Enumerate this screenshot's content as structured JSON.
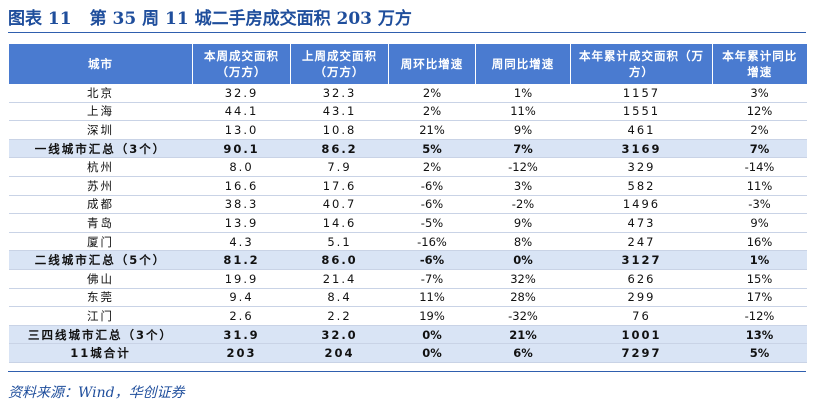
{
  "header": {
    "label": "图表 11",
    "title": "第 35 周 11 城二手房成交面积 203 万方"
  },
  "table": {
    "columns": [
      "城市",
      "本周成交面积（万方）",
      "上周成交面积（万方）",
      "周环比增速",
      "周同比增速",
      "本年累计成交面积（万方）",
      "本年累计同比增速"
    ],
    "rows": [
      [
        "北京",
        "32.9",
        "32.3",
        "2%",
        "1%",
        "1157",
        "3%"
      ],
      [
        "上海",
        "44.1",
        "43.1",
        "2%",
        "11%",
        "1551",
        "12%"
      ],
      [
        "深圳",
        "13.0",
        "10.8",
        "21%",
        "9%",
        "461",
        "2%"
      ],
      [
        "一线城市汇总（3个）",
        "90.1",
        "86.2",
        "5%",
        "7%",
        "3169",
        "7%"
      ],
      [
        "杭州",
        "8.0",
        "7.9",
        "2%",
        "-12%",
        "329",
        "-14%"
      ],
      [
        "苏州",
        "16.6",
        "17.6",
        "-6%",
        "3%",
        "582",
        "11%"
      ],
      [
        "成都",
        "38.3",
        "40.7",
        "-6%",
        "-2%",
        "1496",
        "-3%"
      ],
      [
        "青岛",
        "13.9",
        "14.6",
        "-5%",
        "9%",
        "473",
        "9%"
      ],
      [
        "厦门",
        "4.3",
        "5.1",
        "-16%",
        "8%",
        "247",
        "16%"
      ],
      [
        "二线城市汇总（5个）",
        "81.2",
        "86.0",
        "-6%",
        "0%",
        "3127",
        "1%"
      ],
      [
        "佛山",
        "19.9",
        "21.4",
        "-7%",
        "32%",
        "626",
        "15%"
      ],
      [
        "东莞",
        "9.4",
        "8.4",
        "11%",
        "28%",
        "299",
        "17%"
      ],
      [
        "江门",
        "2.6",
        "2.2",
        "19%",
        "-32%",
        "76",
        "-12%"
      ],
      [
        "三四线城市汇总（3个）",
        "31.9",
        "32.0",
        "0%",
        "21%",
        "1001",
        "13%"
      ],
      [
        "11城合计",
        "203",
        "204",
        "0%",
        "6%",
        "7297",
        "5%"
      ]
    ]
  },
  "footer": {
    "source": "资料来源：Wind，华创证券"
  }
}
